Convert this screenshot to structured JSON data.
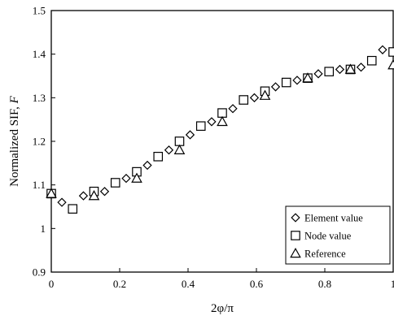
{
  "chart_data": {
    "type": "scatter",
    "xlabel": "2φ/π",
    "ylabel_main": "Normalized SIF, ",
    "ylabel_symbol": "F",
    "xlim": [
      0,
      1
    ],
    "ylim": [
      0.9,
      1.5
    ],
    "x_ticks": [
      "0",
      "0.2",
      "0.4",
      "0.6",
      "0.8",
      "1"
    ],
    "x_tick_values": [
      0,
      0.2,
      0.4,
      0.6,
      0.8,
      1.0
    ],
    "y_ticks": [
      "0.9",
      "1",
      "1.1",
      "1.2",
      "1.3",
      "1.4",
      "1.5"
    ],
    "y_tick_values": [
      0.9,
      1.0,
      1.1,
      1.2,
      1.3,
      1.4,
      1.5
    ],
    "grid": false,
    "legend_position": "bottom-right",
    "series": [
      {
        "name": "Element value",
        "marker": "diamond",
        "x": [
          0.031,
          0.094,
          0.156,
          0.219,
          0.281,
          0.344,
          0.406,
          0.469,
          0.531,
          0.594,
          0.656,
          0.719,
          0.781,
          0.844,
          0.906,
          0.969
        ],
        "y": [
          1.06,
          1.075,
          1.085,
          1.115,
          1.145,
          1.18,
          1.215,
          1.245,
          1.275,
          1.3,
          1.325,
          1.34,
          1.355,
          1.365,
          1.37,
          1.41
        ]
      },
      {
        "name": "Node value",
        "marker": "square",
        "x": [
          0.0,
          0.0625,
          0.125,
          0.1875,
          0.25,
          0.3125,
          0.375,
          0.4375,
          0.5,
          0.5625,
          0.625,
          0.6875,
          0.75,
          0.8125,
          0.875,
          0.9375,
          1.0
        ],
        "y": [
          1.08,
          1.045,
          1.085,
          1.105,
          1.13,
          1.165,
          1.2,
          1.235,
          1.265,
          1.295,
          1.315,
          1.335,
          1.345,
          1.36,
          1.365,
          1.385,
          1.405
        ]
      },
      {
        "name": "Reference",
        "marker": "triangle",
        "x": [
          0.0,
          0.125,
          0.25,
          0.375,
          0.5,
          0.625,
          0.75,
          0.875,
          1.0
        ],
        "y": [
          1.08,
          1.075,
          1.115,
          1.18,
          1.245,
          1.305,
          1.345,
          1.365,
          1.375
        ]
      }
    ]
  }
}
